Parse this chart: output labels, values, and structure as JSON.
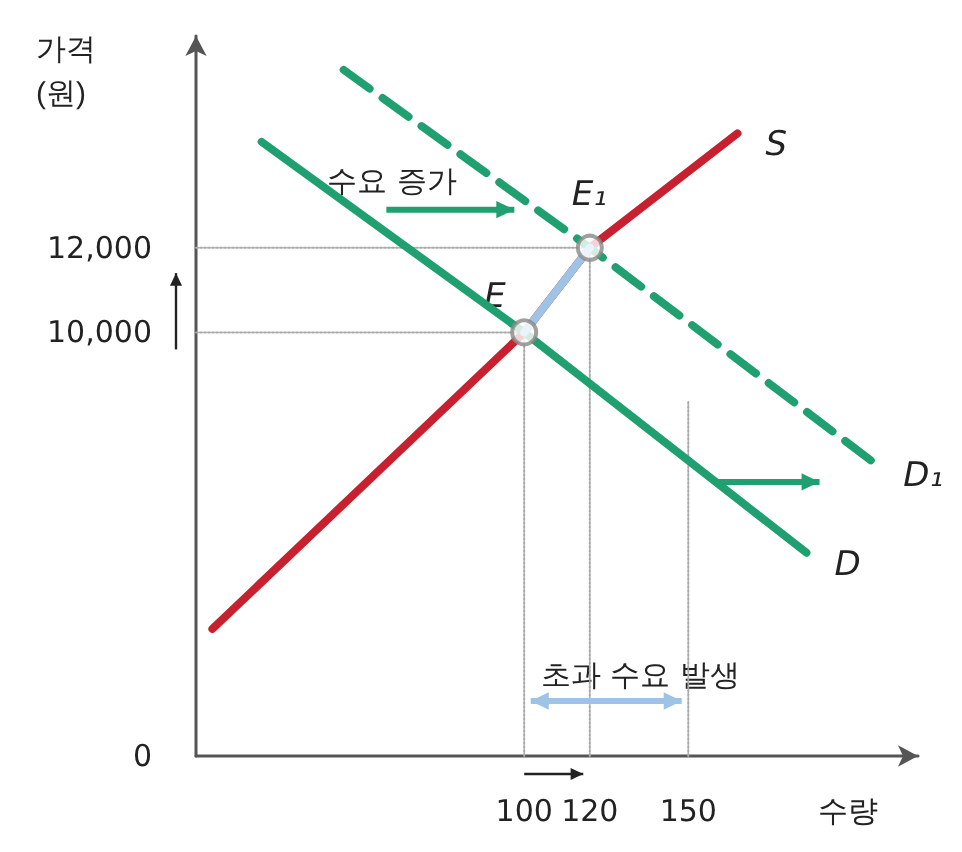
{
  "chart_data": {
    "type": "line",
    "xlabel": "수량",
    "ylabel": "가격\n(원)",
    "xlim": [
      0,
      220
    ],
    "ylim": [
      0,
      17000
    ],
    "xticks": [
      100,
      120,
      150
    ],
    "yticks": [
      0,
      {
        "value": 10000,
        "label": "10,000"
      },
      {
        "value": 12000,
        "label": "12,000"
      }
    ],
    "grid": false,
    "legend": false,
    "marker": "none",
    "series": [
      {
        "name": "S",
        "color": "#c8202f",
        "x": [
          5,
          100,
          120,
          165
        ],
        "values": [
          3000,
          10000,
          12000,
          14700
        ]
      },
      {
        "name": "D",
        "color": "#20a070",
        "x": [
          20,
          100,
          186
        ],
        "values": [
          14500,
          10000,
          4800
        ]
      },
      {
        "name": "D₁",
        "color": "#20a070",
        "line_style": "dashed",
        "x": [
          45,
          120,
          207
        ],
        "values": [
          16200,
          12000,
          6900
        ]
      },
      {
        "color": "#9dc3e6",
        "x": [
          100,
          120
        ],
        "values": [
          10000,
          12000
        ]
      },
      {
        "color": "#aaaaaa",
        "line_style": "dotted",
        "x": [
          0,
          100
        ],
        "values": [
          10000,
          10000
        ]
      },
      {
        "color": "#aaaaaa",
        "line_style": "dotted",
        "x": [
          0,
          120
        ],
        "values": [
          12000,
          12000
        ]
      },
      {
        "color": "#aaaaaa",
        "line_style": "dotted",
        "x": [
          100,
          100
        ],
        "values": [
          0,
          10000
        ]
      },
      {
        "color": "#aaaaaa",
        "line_style": "dotted",
        "x": [
          120,
          120
        ],
        "values": [
          0,
          12000
        ]
      },
      {
        "color": "#aaaaaa",
        "line_style": "dotted",
        "x": [
          150,
          150
        ],
        "values": [
          0,
          8400
        ]
      },
      {
        "type": "scatter",
        "marker": "circle",
        "color": "#888888",
        "x": [
          100,
          120
        ],
        "values": [
          10000,
          12000
        ]
      }
    ],
    "annotations": [
      {
        "text": "E",
        "x": 100,
        "y": 10000
      },
      {
        "text": "E₁",
        "x": 120,
        "y": 12000
      },
      "수요 증가",
      "초과 수요 발생"
    ]
  }
}
